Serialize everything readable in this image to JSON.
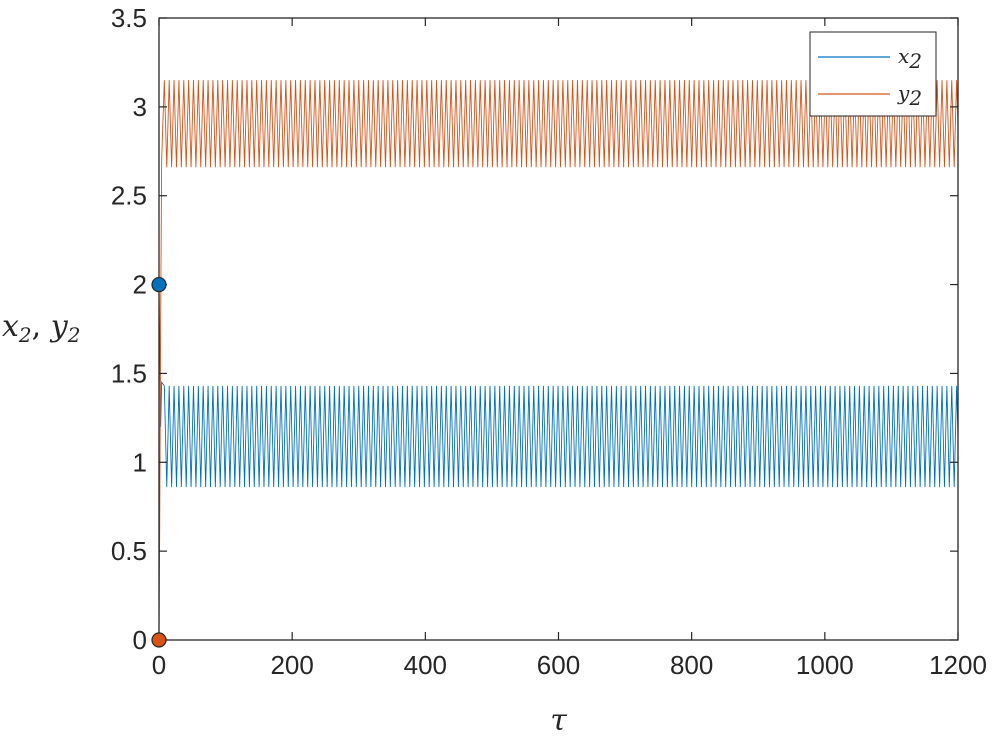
{
  "chart_data": {
    "type": "line",
    "title": "",
    "xlabel": "τ",
    "ylabel_parts": [
      "x",
      "2",
      ", ",
      "y",
      "2"
    ],
    "xlim": [
      0,
      1200
    ],
    "ylim": [
      0,
      3.5
    ],
    "x_ticks": [
      0,
      200,
      400,
      600,
      800,
      1000,
      1200
    ],
    "y_ticks": [
      0,
      0.5,
      1,
      1.5,
      2,
      2.5,
      3,
      3.5
    ],
    "x_tick_labels": [
      "0",
      "200",
      "400",
      "600",
      "800",
      "1000",
      "1200"
    ],
    "y_tick_labels": [
      "0",
      "0.5",
      "1",
      "1.5",
      "2",
      "2.5",
      "3",
      "3.5"
    ],
    "grid": false,
    "legend_position": "top-right",
    "series": [
      {
        "name": "x2",
        "legend_base": "x",
        "legend_sub": "2",
        "color": "#0072BD",
        "initial_value": 2,
        "oscillation_min": 0.86,
        "oscillation_max": 1.43,
        "oscillation_start": 8,
        "period": 7.3
      },
      {
        "name": "y2",
        "legend_base": "y",
        "legend_sub": "2",
        "color": "#D95319",
        "initial_value": 0,
        "oscillation_min": 2.66,
        "oscillation_max": 3.15,
        "oscillation_start": 8,
        "period": 7.3
      }
    ],
    "markers": [
      {
        "series": "x2",
        "x": 0,
        "y": 2,
        "color": "#0072BD"
      },
      {
        "series": "y2",
        "x": 0,
        "y": 0,
        "color": "#D95319"
      }
    ]
  }
}
